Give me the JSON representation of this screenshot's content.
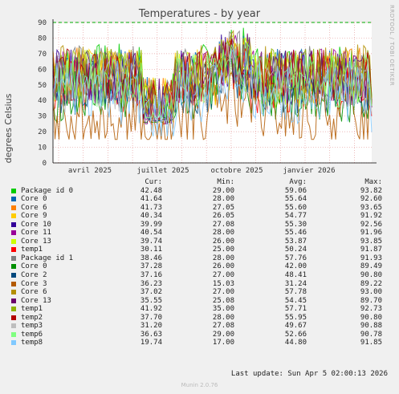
{
  "title": "Temperatures - by year",
  "ylabel": "degrees Celsius",
  "side_label": "RRDTOOL / TOBI OETIKER",
  "footer": "Munin 2.0.76",
  "last_update": "Last update: Sun Apr  5 02:00:13 2026",
  "colors": {
    "background": "#f0f0f0",
    "plot": "#ffffff",
    "grid": "#e6a0a0",
    "warning": "#00aa00"
  },
  "legend_headers": {
    "cur": "Cur:",
    "min": "Min:",
    "avg": "Avg:",
    "max": "Max:"
  },
  "chart_data": {
    "type": "line",
    "ylim": [
      0,
      90
    ],
    "yticks": [
      0,
      10,
      20,
      30,
      40,
      50,
      60,
      70,
      80,
      90
    ],
    "xlabels": [
      "avril 2025",
      "juillet 2025",
      "octobre 2025",
      "janvier 2026"
    ],
    "grid": true,
    "warning_line": 90,
    "series": [
      {
        "name": "Package id 0",
        "color": "#00cc00",
        "cur": "42.48",
        "min": "29.00",
        "avg": "59.06",
        "max": "93.82"
      },
      {
        "name": "Core 0",
        "color": "#0066b3",
        "cur": "41.64",
        "min": "28.00",
        "avg": "55.64",
        "max": "92.60"
      },
      {
        "name": "Core 6",
        "color": "#ff8000",
        "cur": "41.73",
        "min": "27.05",
        "avg": "55.60",
        "max": "93.65"
      },
      {
        "name": "Core 9",
        "color": "#ffcc00",
        "cur": "40.34",
        "min": "26.05",
        "avg": "54.77",
        "max": "91.92"
      },
      {
        "name": "Core 10",
        "color": "#330099",
        "cur": "39.99",
        "min": "27.08",
        "avg": "55.30",
        "max": "92.56"
      },
      {
        "name": "Core 11",
        "color": "#990099",
        "cur": "40.54",
        "min": "28.00",
        "avg": "55.46",
        "max": "91.96"
      },
      {
        "name": "Core 13",
        "color": "#ccff00",
        "cur": "39.74",
        "min": "26.00",
        "avg": "53.87",
        "max": "93.85"
      },
      {
        "name": "temp1",
        "color": "#ff0000",
        "cur": "30.11",
        "min": "25.00",
        "avg": "50.24",
        "max": "91.87"
      },
      {
        "name": "Package id 1",
        "color": "#808080",
        "cur": "38.46",
        "min": "28.00",
        "avg": "57.76",
        "max": "91.93"
      },
      {
        "name": "Core 0",
        "color": "#008f00",
        "cur": "37.28",
        "min": "26.00",
        "avg": "42.00",
        "max": "89.49"
      },
      {
        "name": "Core 2",
        "color": "#00487d",
        "cur": "37.16",
        "min": "27.00",
        "avg": "48.41",
        "max": "90.80"
      },
      {
        "name": "Core 3",
        "color": "#b35a00",
        "cur": "36.23",
        "min": "15.03",
        "avg": "31.24",
        "max": "89.22"
      },
      {
        "name": "Core 6",
        "color": "#b38f00",
        "cur": "37.02",
        "min": "27.00",
        "avg": "57.78",
        "max": "93.00"
      },
      {
        "name": "Core 13",
        "color": "#6b006b",
        "cur": "35.55",
        "min": "25.08",
        "avg": "54.45",
        "max": "89.70"
      },
      {
        "name": "temp1",
        "color": "#8fb300",
        "cur": "41.92",
        "min": "35.00",
        "avg": "57.71",
        "max": "92.73"
      },
      {
        "name": "temp2",
        "color": "#b30000",
        "cur": "37.70",
        "min": "28.00",
        "avg": "55.95",
        "max": "90.80"
      },
      {
        "name": "temp3",
        "color": "#bebebe",
        "cur": "31.20",
        "min": "27.08",
        "avg": "49.67",
        "max": "90.88"
      },
      {
        "name": "temp6",
        "color": "#80ff80",
        "cur": "36.63",
        "min": "29.00",
        "avg": "52.66",
        "max": "90.78"
      },
      {
        "name": "temp8",
        "color": "#80c9ff",
        "cur": "19.74",
        "min": "17.00",
        "avg": "44.80",
        "max": "91.85"
      }
    ]
  }
}
